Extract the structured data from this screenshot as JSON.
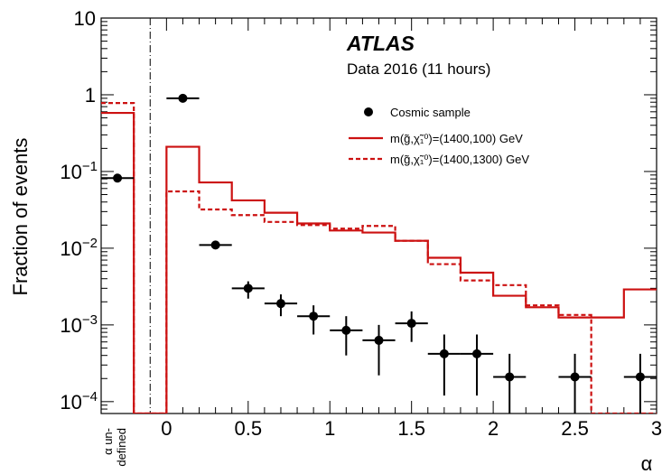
{
  "chart_data": {
    "type": "step-histogram",
    "experiment_label": "ATLAS",
    "subtitle": "Data 2016 (11 hours)",
    "xlabel": "α",
    "ylabel": "Fraction of events",
    "xlim": [
      -0.4,
      3.0
    ],
    "ylim": [
      7e-05,
      10
    ],
    "yscale": "log",
    "x_ticks": [
      {
        "value": 0,
        "label": "0"
      },
      {
        "value": 0.5,
        "label": "0.5"
      },
      {
        "value": 1,
        "label": "1"
      },
      {
        "value": 1.5,
        "label": "1.5"
      },
      {
        "value": 2,
        "label": "2"
      },
      {
        "value": 2.5,
        "label": "2.5"
      },
      {
        "value": 3,
        "label": "3"
      }
    ],
    "undefined_bin": {
      "label_line1": "α un-",
      "label_line2": "defined",
      "divider_x": -0.1
    },
    "y_ticks": [
      {
        "value": 10,
        "base": "10",
        "exp": ""
      },
      {
        "value": 1,
        "base": "1",
        "exp": ""
      },
      {
        "value": 0.1,
        "base": "10",
        "exp": "−1"
      },
      {
        "value": 0.01,
        "base": "10",
        "exp": "−2"
      },
      {
        "value": 0.001,
        "base": "10",
        "exp": "−3"
      },
      {
        "value": 0.0001,
        "base": "10",
        "exp": "−4"
      }
    ],
    "series": [
      {
        "name": "Cosmic sample",
        "kind": "points",
        "color": "#000000",
        "points": [
          {
            "x": -0.3,
            "y": 0.082,
            "xerr": 0.1,
            "ylo": 0.082,
            "yhi": 0.082
          },
          {
            "x": 0.1,
            "y": 0.9,
            "xerr": 0.1,
            "ylo": 0.9,
            "yhi": 0.9
          },
          {
            "x": 0.3,
            "y": 0.011,
            "xerr": 0.1,
            "ylo": 0.011,
            "yhi": 0.011
          },
          {
            "x": 0.5,
            "y": 0.003,
            "xerr": 0.1,
            "ylo": 0.0022,
            "yhi": 0.0037
          },
          {
            "x": 0.7,
            "y": 0.0019,
            "xerr": 0.1,
            "ylo": 0.0013,
            "yhi": 0.0025
          },
          {
            "x": 0.9,
            "y": 0.0013,
            "xerr": 0.1,
            "ylo": 0.00075,
            "yhi": 0.0018
          },
          {
            "x": 1.1,
            "y": 0.00085,
            "xerr": 0.1,
            "ylo": 0.0004,
            "yhi": 0.0013
          },
          {
            "x": 1.3,
            "y": 0.00063,
            "xerr": 0.1,
            "ylo": 0.00022,
            "yhi": 0.001
          },
          {
            "x": 1.5,
            "y": 0.00105,
            "xerr": 0.1,
            "ylo": 0.0006,
            "yhi": 0.0015
          },
          {
            "x": 1.7,
            "y": 0.00042,
            "xerr": 0.1,
            "ylo": 0.00012,
            "yhi": 0.00075
          },
          {
            "x": 1.9,
            "y": 0.00042,
            "xerr": 0.1,
            "ylo": 0.00012,
            "yhi": 0.00075
          },
          {
            "x": 2.1,
            "y": 0.00021,
            "xerr": 0.1,
            "ylo": 7e-05,
            "yhi": 0.00042
          },
          {
            "x": 2.5,
            "y": 0.00021,
            "xerr": 0.1,
            "ylo": 7e-05,
            "yhi": 0.00042
          },
          {
            "x": 2.9,
            "y": 0.00021,
            "xerr": 0.1,
            "ylo": 7e-05,
            "yhi": 0.00042
          }
        ]
      },
      {
        "name": "m(g̃,χ̃₁⁰)=(1400,100) GeV",
        "kind": "step",
        "style": "solid",
        "color": "#cc1111",
        "bins": [
          {
            "x0": -0.4,
            "x1": -0.2,
            "y": 0.58
          },
          {
            "x0": -0.2,
            "x1": 0.0,
            "y": 7e-05
          },
          {
            "x0": 0.0,
            "x1": 0.2,
            "y": 0.21
          },
          {
            "x0": 0.2,
            "x1": 0.4,
            "y": 0.072
          },
          {
            "x0": 0.4,
            "x1": 0.6,
            "y": 0.042
          },
          {
            "x0": 0.6,
            "x1": 0.8,
            "y": 0.029
          },
          {
            "x0": 0.8,
            "x1": 1.0,
            "y": 0.021
          },
          {
            "x0": 1.0,
            "x1": 1.2,
            "y": 0.017
          },
          {
            "x0": 1.2,
            "x1": 1.4,
            "y": 0.016
          },
          {
            "x0": 1.4,
            "x1": 1.6,
            "y": 0.0125
          },
          {
            "x0": 1.6,
            "x1": 1.8,
            "y": 0.0075
          },
          {
            "x0": 1.8,
            "x1": 2.0,
            "y": 0.0048
          },
          {
            "x0": 2.0,
            "x1": 2.2,
            "y": 0.0024
          },
          {
            "x0": 2.2,
            "x1": 2.4,
            "y": 0.0017
          },
          {
            "x0": 2.4,
            "x1": 2.6,
            "y": 0.00125
          },
          {
            "x0": 2.6,
            "x1": 2.8,
            "y": 0.00125
          },
          {
            "x0": 2.8,
            "x1": 3.0,
            "y": 0.0029
          }
        ]
      },
      {
        "name": "m(g̃,χ̃₁⁰)=(1400,1300) GeV",
        "kind": "step",
        "style": "dashed",
        "color": "#cc1111",
        "bins": [
          {
            "x0": -0.4,
            "x1": -0.2,
            "y": 0.78
          },
          {
            "x0": -0.2,
            "x1": 0.0,
            "y": 7e-05
          },
          {
            "x0": 0.0,
            "x1": 0.2,
            "y": 0.055
          },
          {
            "x0": 0.2,
            "x1": 0.4,
            "y": 0.032
          },
          {
            "x0": 0.4,
            "x1": 0.6,
            "y": 0.027
          },
          {
            "x0": 0.6,
            "x1": 0.8,
            "y": 0.022
          },
          {
            "x0": 0.8,
            "x1": 1.0,
            "y": 0.02
          },
          {
            "x0": 1.0,
            "x1": 1.2,
            "y": 0.018
          },
          {
            "x0": 1.2,
            "x1": 1.4,
            "y": 0.0195
          },
          {
            "x0": 1.4,
            "x1": 1.6,
            "y": 0.0125
          },
          {
            "x0": 1.6,
            "x1": 1.8,
            "y": 0.0062
          },
          {
            "x0": 1.8,
            "x1": 2.0,
            "y": 0.0038
          },
          {
            "x0": 2.0,
            "x1": 2.2,
            "y": 0.0033
          },
          {
            "x0": 2.2,
            "x1": 2.4,
            "y": 0.0018
          },
          {
            "x0": 2.4,
            "x1": 2.6,
            "y": 0.00135
          },
          {
            "x0": 2.6,
            "x1": 2.8,
            "y": 7e-05
          },
          {
            "x0": 2.8,
            "x1": 3.0,
            "y": 7e-05
          }
        ]
      }
    ],
    "legend_position": "top-right"
  }
}
